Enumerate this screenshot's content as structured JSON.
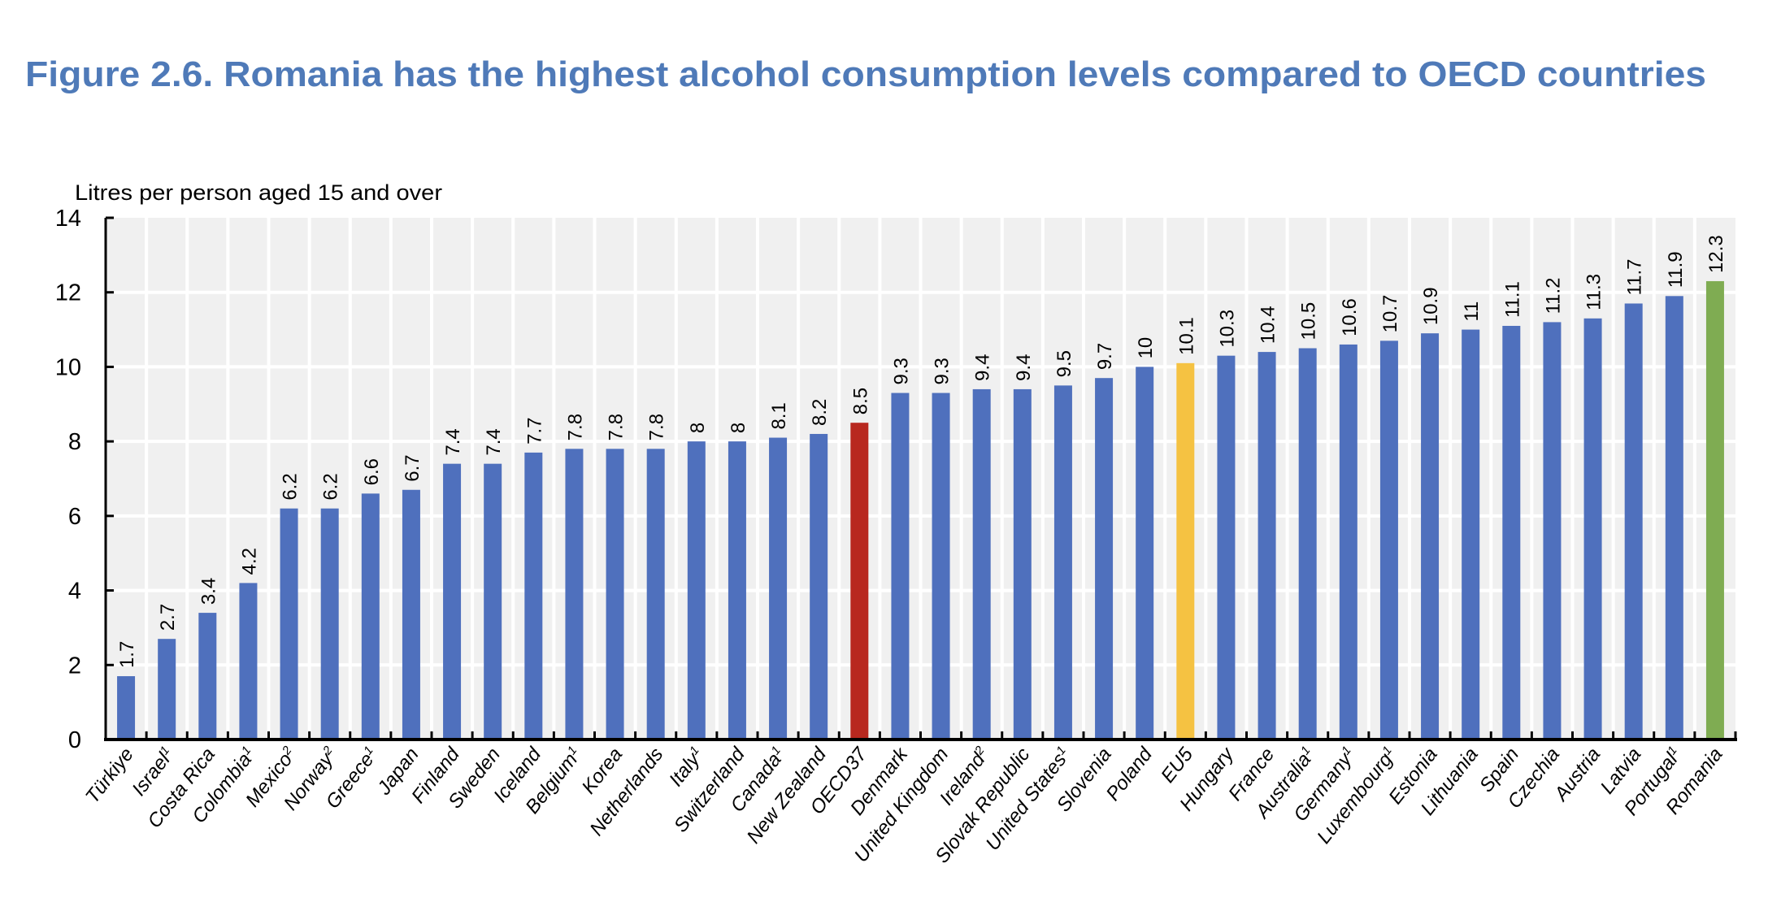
{
  "chart_data": {
    "type": "bar",
    "title": "Figure 2.6. Romania has the highest alcohol consumption levels compared to OECD countries",
    "ylabel": "Litres per person aged 15 and over",
    "xlabel": "",
    "ylim": [
      0,
      14
    ],
    "yticks": [
      0,
      2,
      4,
      6,
      8,
      10,
      12,
      14
    ],
    "grid": true,
    "categories": [
      {
        "name": "Türkiye",
        "note": ""
      },
      {
        "name": "Israel",
        "note": "1"
      },
      {
        "name": "Costa Rica",
        "note": ""
      },
      {
        "name": "Colombia",
        "note": "1"
      },
      {
        "name": "Mexico",
        "note": "2"
      },
      {
        "name": "Norway",
        "note": "2"
      },
      {
        "name": "Greece",
        "note": "1"
      },
      {
        "name": "Japan",
        "note": ""
      },
      {
        "name": "Finland",
        "note": ""
      },
      {
        "name": "Sweden",
        "note": ""
      },
      {
        "name": "Iceland",
        "note": ""
      },
      {
        "name": "Belgium",
        "note": "1"
      },
      {
        "name": "Korea",
        "note": ""
      },
      {
        "name": "Netherlands",
        "note": ""
      },
      {
        "name": "Italy",
        "note": "1"
      },
      {
        "name": "Switzerland",
        "note": ""
      },
      {
        "name": "Canada",
        "note": "1"
      },
      {
        "name": "New Zealand",
        "note": ""
      },
      {
        "name": "OECD37",
        "note": ""
      },
      {
        "name": "Denmark",
        "note": ""
      },
      {
        "name": "United Kingdom",
        "note": ""
      },
      {
        "name": "Ireland",
        "note": "2"
      },
      {
        "name": "Slovak Republic",
        "note": ""
      },
      {
        "name": "United States",
        "note": "1"
      },
      {
        "name": "Slovenia",
        "note": ""
      },
      {
        "name": "Poland",
        "note": ""
      },
      {
        "name": "EU5",
        "note": ""
      },
      {
        "name": "Hungary",
        "note": ""
      },
      {
        "name": "France",
        "note": ""
      },
      {
        "name": "Australia",
        "note": "1"
      },
      {
        "name": "Germany",
        "note": "1"
      },
      {
        "name": "Luxembourg",
        "note": "1"
      },
      {
        "name": "Estonia",
        "note": ""
      },
      {
        "name": "Lithuania",
        "note": ""
      },
      {
        "name": "Spain",
        "note": ""
      },
      {
        "name": "Czechia",
        "note": ""
      },
      {
        "name": "Austria",
        "note": ""
      },
      {
        "name": "Latvia",
        "note": ""
      },
      {
        "name": "Portugal",
        "note": "1"
      },
      {
        "name": "Romania",
        "note": ""
      }
    ],
    "values": [
      1.7,
      2.7,
      3.4,
      4.2,
      6.2,
      6.2,
      6.6,
      6.7,
      7.4,
      7.4,
      7.7,
      7.8,
      7.8,
      7.8,
      8,
      8,
      8.1,
      8.2,
      8.5,
      9.3,
      9.3,
      9.4,
      9.4,
      9.5,
      9.7,
      10,
      10.1,
      10.3,
      10.4,
      10.5,
      10.6,
      10.7,
      10.9,
      11,
      11.1,
      11.2,
      11.3,
      11.7,
      11.9,
      12.3
    ],
    "highlight": {
      "OECD37": "#b8281f",
      "EU5": "#f5c242",
      "Romania": "#7fac52"
    },
    "colors": {
      "default": "#4f70bd",
      "plot_background": "#f0f0f0",
      "grid": "#ffffff",
      "title": "#4f7ab8"
    },
    "data_labels": true
  }
}
